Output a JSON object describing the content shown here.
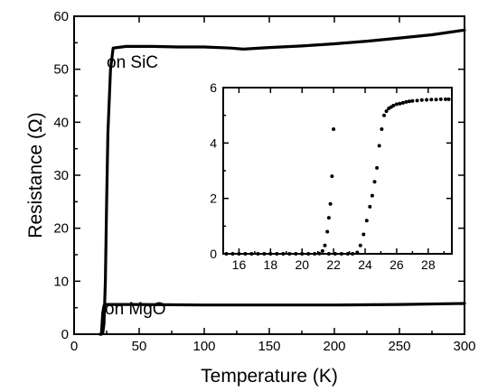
{
  "chart_data": [
    {
      "type": "line",
      "title": "",
      "xlabel": "Temperature (K)",
      "ylabel": "Resistance (Ω)",
      "xlim": [
        0,
        300
      ],
      "ylim": [
        0,
        60
      ],
      "xticks": [
        0,
        50,
        100,
        150,
        200,
        250,
        300
      ],
      "yticks": [
        0,
        10,
        20,
        30,
        40,
        50,
        60
      ],
      "grid": false,
      "annotations": [
        "on SiC",
        "on MgO"
      ],
      "series": [
        {
          "name": "on SiC",
          "x": [
            20,
            21,
            22,
            23,
            24,
            25,
            26,
            28,
            30,
            40,
            60,
            80,
            100,
            120,
            130,
            150,
            175,
            200,
            225,
            250,
            275,
            300
          ],
          "y": [
            0,
            0,
            0.2,
            2,
            10,
            25,
            38,
            50,
            54,
            54.3,
            54.3,
            54.2,
            54.2,
            54,
            53.8,
            54.1,
            54.4,
            54.8,
            55.3,
            55.9,
            56.5,
            57.4
          ]
        },
        {
          "name": "on MgO",
          "x": [
            20,
            21,
            22,
            23,
            24,
            25,
            30,
            50,
            100,
            150,
            200,
            250,
            300
          ],
          "y": [
            0,
            0,
            4,
            5.4,
            5.6,
            5.6,
            5.6,
            5.6,
            5.5,
            5.5,
            5.5,
            5.6,
            5.8
          ]
        }
      ]
    },
    {
      "type": "scatter",
      "title": "",
      "xlabel": "",
      "ylabel": "",
      "xlim": [
        15,
        29.5
      ],
      "ylim": [
        0,
        6
      ],
      "xticks": [
        16,
        18,
        20,
        22,
        24,
        26,
        28
      ],
      "yticks": [
        0,
        2,
        4,
        6
      ],
      "grid": false,
      "series": [
        {
          "x": [
            15.2,
            15.6,
            16.0,
            16.4,
            16.8,
            17.2,
            17.6,
            18.0,
            18.4,
            18.8,
            19.2,
            19.6,
            20.0,
            20.4,
            20.8,
            21.1,
            21.3,
            21.45,
            21.6,
            21.7,
            21.8,
            21.9,
            22.0
          ],
          "y": [
            0,
            0,
            0,
            0,
            0,
            0,
            0,
            0,
            0,
            0,
            0,
            0,
            0,
            0,
            0,
            0.01,
            0.1,
            0.3,
            0.8,
            1.3,
            1.8,
            2.8,
            4.5
          ]
        },
        {
          "x": [
            21.7,
            22.1,
            22.5,
            22.9,
            23.2,
            23.5,
            23.7,
            23.9,
            24.1,
            24.3,
            24.45,
            24.6,
            24.75,
            24.9,
            25.05,
            25.2,
            25.35,
            25.5,
            25.65,
            25.8,
            26.0,
            26.2,
            26.4,
            26.6,
            26.8,
            27.0,
            27.3,
            27.6,
            27.9,
            28.2,
            28.5,
            28.8,
            29.1,
            29.3
          ],
          "y": [
            0,
            0,
            0,
            0,
            0,
            0.05,
            0.3,
            0.7,
            1.2,
            1.7,
            2.1,
            2.6,
            3.1,
            3.9,
            4.5,
            5.0,
            5.15,
            5.25,
            5.3,
            5.35,
            5.4,
            5.42,
            5.45,
            5.48,
            5.5,
            5.52,
            5.53,
            5.55,
            5.56,
            5.57,
            5.57,
            5.58,
            5.58,
            5.58
          ]
        }
      ]
    }
  ]
}
